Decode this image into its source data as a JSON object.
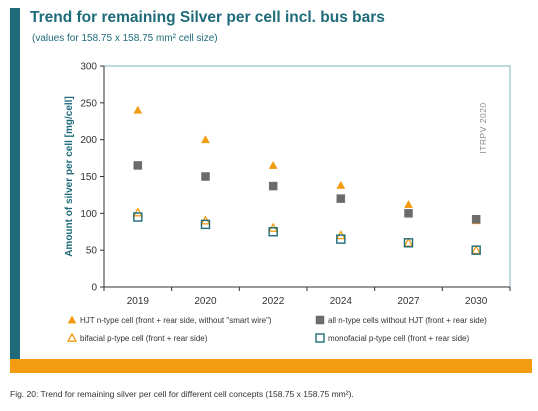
{
  "page": {
    "title": "Trend for remaining Silver per cell incl. bus bars",
    "subtitle": "(values for 158.75 x 158.75 mm² cell size)",
    "watermark": "ITRPV 2020",
    "caption": "Fig. 20: Trend for remaining silver per cell for different cell concepts (158.75 x 158.75 mm²).",
    "colors": {
      "accent": "#1f6b7a",
      "orange": "#f39c12",
      "gray": "#6b6b6b",
      "teal": "#1f6b7a"
    }
  },
  "chart_data": {
    "type": "scatter",
    "categories": [
      "2019",
      "2020",
      "2022",
      "2024",
      "2027",
      "2030"
    ],
    "ylabel": "Amount of silver per cell [mg/cell]",
    "ylim": [
      0,
      300
    ],
    "yticks": [
      0,
      50,
      100,
      150,
      200,
      250,
      300
    ],
    "grid": false,
    "legend_placement": "bottom",
    "series": [
      {
        "name": "HJT n-type cell (front + rear side, without \"smart wire\")",
        "marker": "triangle-filled",
        "color": "#f39c12",
        "values": [
          240,
          200,
          165,
          138,
          112,
          90
        ]
      },
      {
        "name": "all n-type cells without HJT (front + rear side)",
        "marker": "square-filled",
        "color": "#6b6b6b",
        "values": [
          165,
          150,
          137,
          120,
          100,
          92
        ]
      },
      {
        "name": "bifacial p-type cell (front + rear side)",
        "marker": "triangle-open",
        "color": "#f39c12",
        "values": [
          101,
          90,
          80,
          70,
          60,
          50
        ]
      },
      {
        "name": "monofacial p-type cell (front + rear side)",
        "marker": "square-open",
        "color": "#1f6b7a",
        "values": [
          95,
          85,
          75,
          65,
          60,
          50
        ]
      }
    ]
  }
}
